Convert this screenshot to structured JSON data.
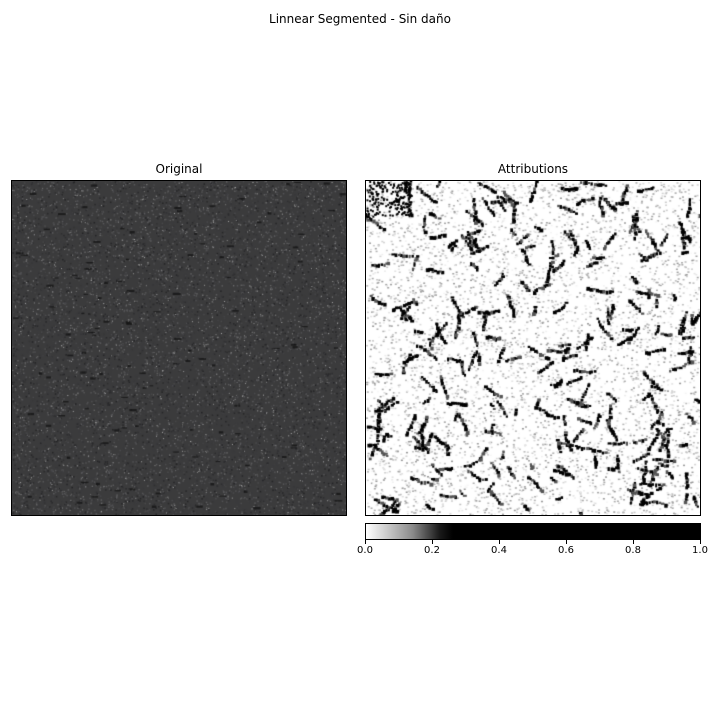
{
  "figure": {
    "title": "Linnear Segmented - Sin daño"
  },
  "panels": {
    "original": {
      "title": "Original",
      "image_description_icon": "asphalt-texture-image"
    },
    "attributions": {
      "title": "Attributions",
      "image_description_icon": "attribution-heatmap-image"
    }
  },
  "colorbar": {
    "min": 0.0,
    "max": 1.0,
    "ticks": [
      "0.0",
      "0.2",
      "0.4",
      "0.6",
      "0.8",
      "1.0"
    ],
    "tick_values": [
      0.0,
      0.2,
      0.4,
      0.6,
      0.8,
      1.0
    ],
    "colors": {
      "low": "#ffffff",
      "high": "#000000"
    }
  },
  "colors": {
    "asphalt_base": "#3b3b3c",
    "speckle": "#9a9a9a"
  }
}
